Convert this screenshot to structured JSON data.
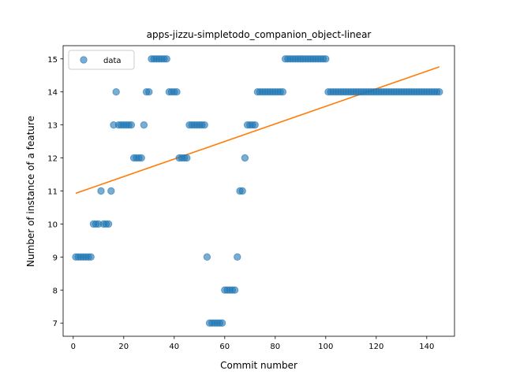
{
  "chart_data": {
    "type": "scatter",
    "title": "apps-jizzu-simpletodo_companion_object-linear",
    "xlabel": "Commit number",
    "ylabel": "Number of instance of a feature",
    "xlim": [
      -4,
      151
    ],
    "ylim": [
      6.6,
      15.4
    ],
    "xticks": [
      0,
      20,
      40,
      60,
      80,
      100,
      120,
      140
    ],
    "yticks": [
      7,
      8,
      9,
      10,
      11,
      12,
      13,
      14,
      15
    ],
    "grid": false,
    "legend": {
      "placement": "top-left",
      "entries": [
        "data"
      ]
    },
    "colors": {
      "data": "#1f77b4",
      "fit": "#ff7f0e"
    },
    "series": [
      {
        "name": "data",
        "kind": "scatter",
        "points": [
          [
            1,
            9
          ],
          [
            2,
            9
          ],
          [
            3,
            9
          ],
          [
            4,
            9
          ],
          [
            5,
            9
          ],
          [
            6,
            9
          ],
          [
            7,
            9
          ],
          [
            8,
            10
          ],
          [
            9,
            10
          ],
          [
            10,
            10
          ],
          [
            11,
            11
          ],
          [
            12,
            10
          ],
          [
            13,
            10
          ],
          [
            14,
            10
          ],
          [
            15,
            11
          ],
          [
            16,
            13
          ],
          [
            17,
            14
          ],
          [
            18,
            13
          ],
          [
            19,
            13
          ],
          [
            20,
            13
          ],
          [
            21,
            13
          ],
          [
            22,
            13
          ],
          [
            23,
            13
          ],
          [
            24,
            12
          ],
          [
            25,
            12
          ],
          [
            26,
            12
          ],
          [
            27,
            12
          ],
          [
            28,
            13
          ],
          [
            29,
            14
          ],
          [
            30,
            14
          ],
          [
            31,
            15
          ],
          [
            32,
            15
          ],
          [
            33,
            15
          ],
          [
            34,
            15
          ],
          [
            35,
            15
          ],
          [
            36,
            15
          ],
          [
            37,
            15
          ],
          [
            38,
            14
          ],
          [
            39,
            14
          ],
          [
            40,
            14
          ],
          [
            41,
            14
          ],
          [
            42,
            12
          ],
          [
            43,
            12
          ],
          [
            44,
            12
          ],
          [
            45,
            12
          ],
          [
            46,
            13
          ],
          [
            47,
            13
          ],
          [
            48,
            13
          ],
          [
            49,
            13
          ],
          [
            50,
            13
          ],
          [
            51,
            13
          ],
          [
            52,
            13
          ],
          [
            53,
            9
          ],
          [
            54,
            7
          ],
          [
            55,
            7
          ],
          [
            56,
            7
          ],
          [
            57,
            7
          ],
          [
            58,
            7
          ],
          [
            59,
            7
          ],
          [
            60,
            8
          ],
          [
            61,
            8
          ],
          [
            62,
            8
          ],
          [
            63,
            8
          ],
          [
            64,
            8
          ],
          [
            65,
            9
          ],
          [
            66,
            11
          ],
          [
            67,
            11
          ],
          [
            68,
            12
          ],
          [
            69,
            13
          ],
          [
            70,
            13
          ],
          [
            71,
            13
          ],
          [
            72,
            13
          ],
          [
            73,
            14
          ],
          [
            74,
            14
          ],
          [
            75,
            14
          ],
          [
            76,
            14
          ],
          [
            77,
            14
          ],
          [
            78,
            14
          ],
          [
            79,
            14
          ],
          [
            80,
            14
          ],
          [
            81,
            14
          ],
          [
            82,
            14
          ],
          [
            83,
            14
          ],
          [
            84,
            15
          ],
          [
            85,
            15
          ],
          [
            86,
            15
          ],
          [
            87,
            15
          ],
          [
            88,
            15
          ],
          [
            89,
            15
          ],
          [
            90,
            15
          ],
          [
            91,
            15
          ],
          [
            92,
            15
          ],
          [
            93,
            15
          ],
          [
            94,
            15
          ],
          [
            95,
            15
          ],
          [
            96,
            15
          ],
          [
            97,
            15
          ],
          [
            98,
            15
          ],
          [
            99,
            15
          ],
          [
            100,
            15
          ],
          [
            101,
            14
          ],
          [
            102,
            14
          ],
          [
            103,
            14
          ],
          [
            104,
            14
          ],
          [
            105,
            14
          ],
          [
            106,
            14
          ],
          [
            107,
            14
          ],
          [
            108,
            14
          ],
          [
            109,
            14
          ],
          [
            110,
            14
          ],
          [
            111,
            14
          ],
          [
            112,
            14
          ],
          [
            113,
            14
          ],
          [
            114,
            14
          ],
          [
            115,
            14
          ],
          [
            116,
            14
          ],
          [
            117,
            14
          ],
          [
            118,
            14
          ],
          [
            119,
            14
          ],
          [
            120,
            14
          ],
          [
            121,
            14
          ],
          [
            122,
            14
          ],
          [
            123,
            14
          ],
          [
            124,
            14
          ],
          [
            125,
            14
          ],
          [
            126,
            14
          ],
          [
            127,
            14
          ],
          [
            128,
            14
          ],
          [
            129,
            14
          ],
          [
            130,
            14
          ],
          [
            131,
            14
          ],
          [
            132,
            14
          ],
          [
            133,
            14
          ],
          [
            134,
            14
          ],
          [
            135,
            14
          ],
          [
            136,
            14
          ],
          [
            137,
            14
          ],
          [
            138,
            14
          ],
          [
            139,
            14
          ],
          [
            140,
            14
          ],
          [
            141,
            14
          ],
          [
            142,
            14
          ],
          [
            143,
            14
          ],
          [
            144,
            14
          ],
          [
            145,
            14
          ]
        ]
      },
      {
        "name": "",
        "kind": "line",
        "points": [
          [
            1,
            10.93
          ],
          [
            145,
            14.76
          ]
        ]
      }
    ]
  }
}
